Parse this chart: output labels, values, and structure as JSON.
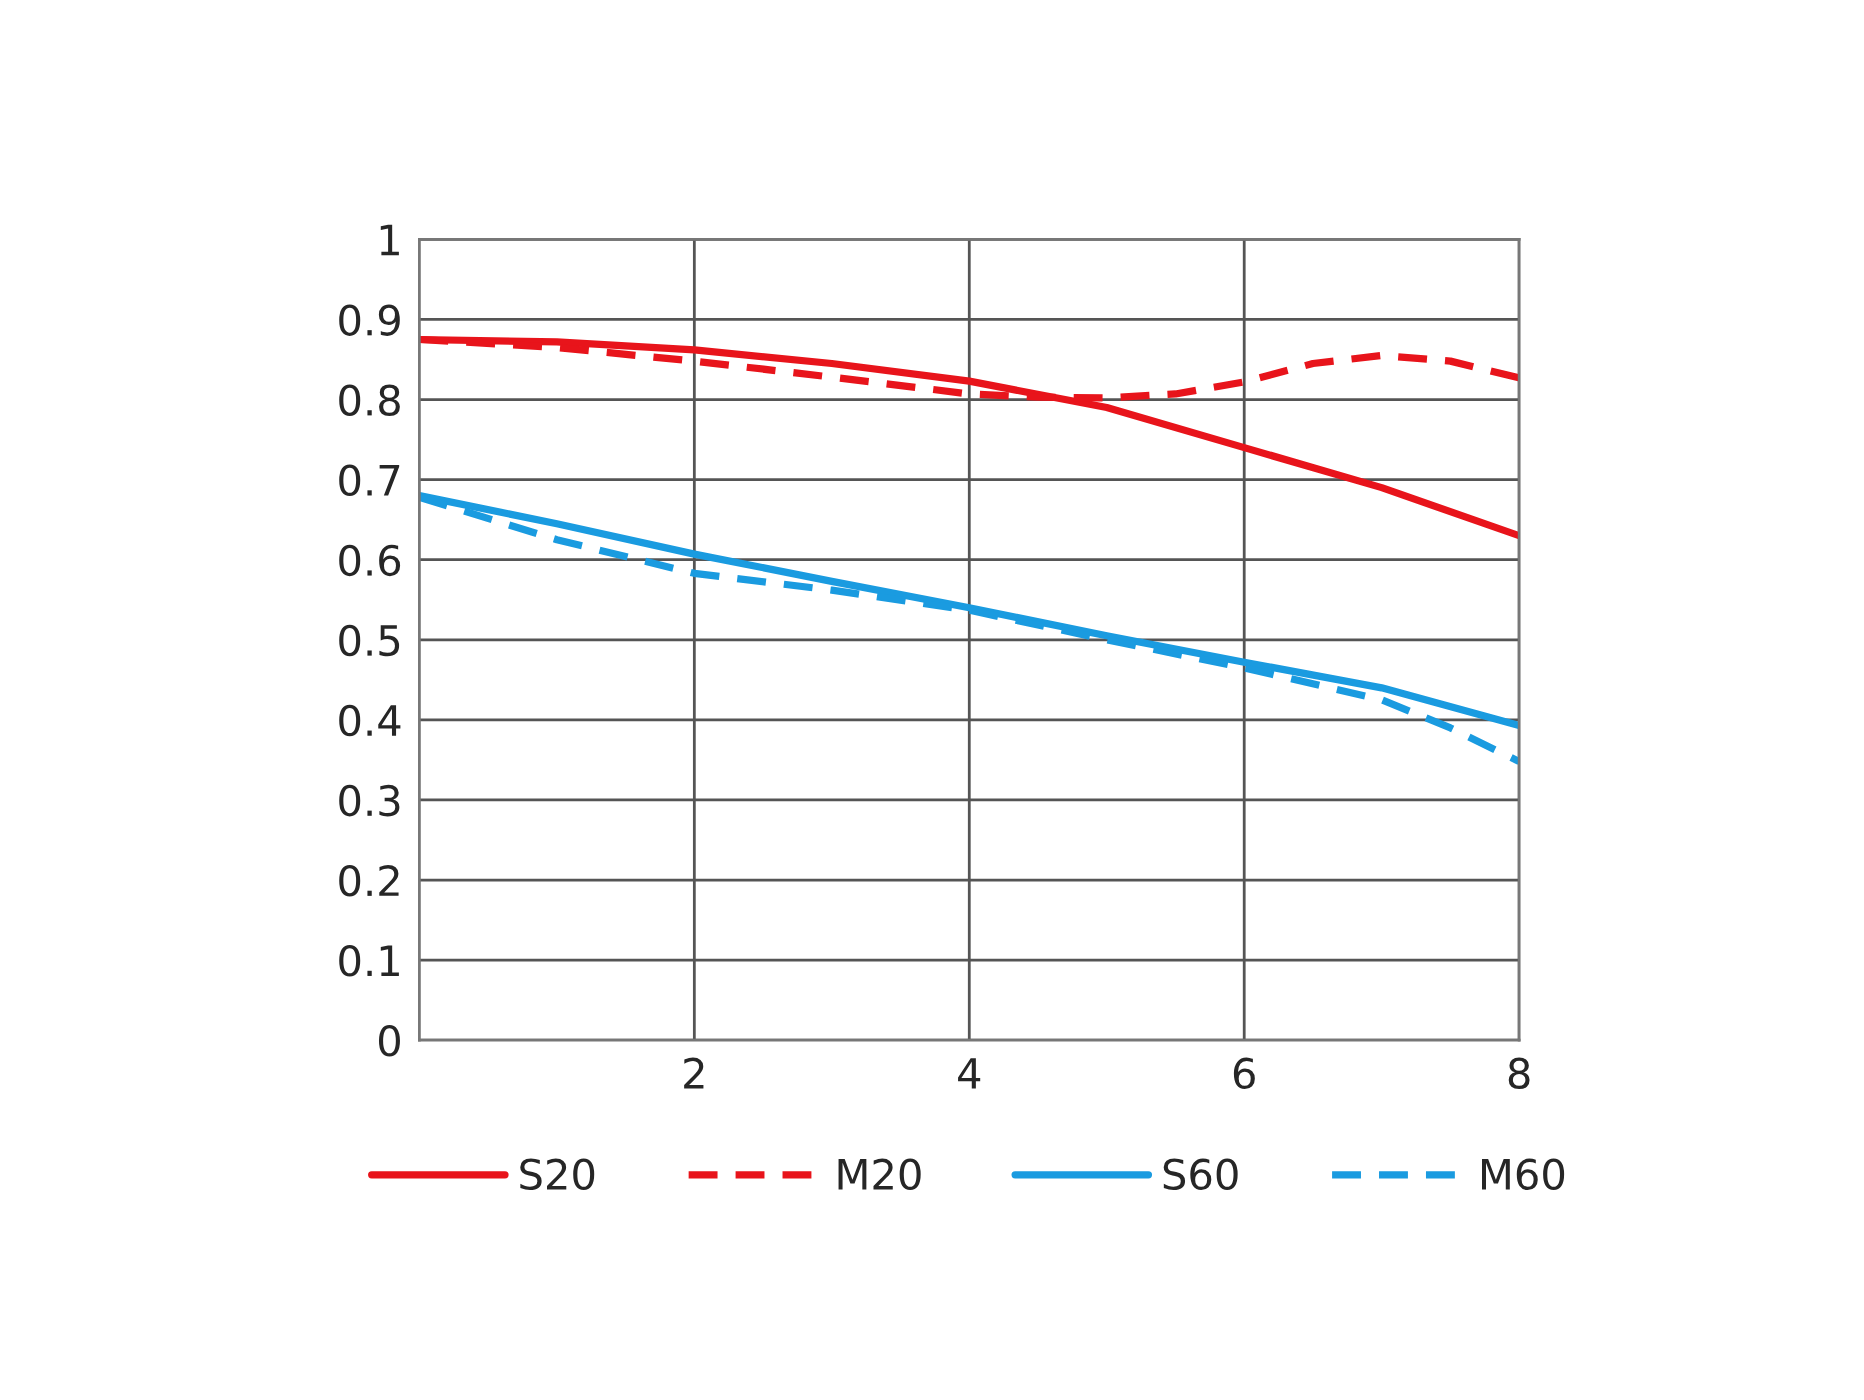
{
  "chart_data": {
    "type": "line",
    "xlim": [
      0,
      8
    ],
    "xticks": [
      2,
      4,
      6,
      8
    ],
    "ylim": [
      0,
      1
    ],
    "yticks": [
      0,
      0.1,
      0.2,
      0.3,
      0.4,
      0.5,
      0.6,
      0.7,
      0.8,
      0.9,
      1
    ],
    "grid": true,
    "legend": "bottom",
    "marker": "none",
    "series": [
      {
        "name": "S20",
        "color": "#e8141b",
        "line_style": "solid",
        "x": [
          0,
          1,
          2,
          3,
          4,
          5,
          6,
          7,
          8
        ],
        "values": [
          0.875,
          0.872,
          0.862,
          0.845,
          0.823,
          0.79,
          0.74,
          0.69,
          0.63
        ]
      },
      {
        "name": "M20",
        "color": "#e8141b",
        "line_style": "dashed",
        "x": [
          0,
          1,
          2,
          3,
          4,
          4.5,
          5,
          5.5,
          6,
          6.5,
          7,
          7.5,
          8
        ],
        "values": [
          0.875,
          0.865,
          0.848,
          0.828,
          0.807,
          0.803,
          0.802,
          0.807,
          0.822,
          0.845,
          0.855,
          0.848,
          0.827
        ]
      },
      {
        "name": "S60",
        "color": "#1a9be0",
        "line_style": "solid",
        "x": [
          0,
          1,
          2,
          3,
          4,
          5,
          6,
          7,
          8
        ],
        "values": [
          0.68,
          0.645,
          0.607,
          0.573,
          0.54,
          0.505,
          0.472,
          0.44,
          0.393
        ]
      },
      {
        "name": "M60",
        "color": "#1a9be0",
        "line_style": "dashed",
        "x": [
          0,
          1,
          2,
          3,
          4,
          5,
          6,
          7,
          7.5,
          8
        ],
        "values": [
          0.678,
          0.625,
          0.583,
          0.562,
          0.537,
          0.5,
          0.465,
          0.425,
          0.39,
          0.348
        ]
      }
    ]
  }
}
